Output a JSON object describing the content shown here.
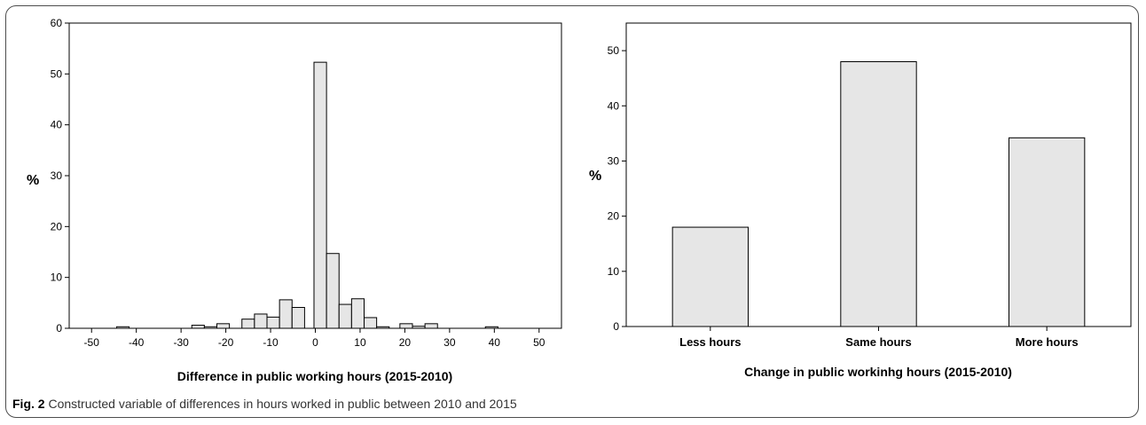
{
  "caption": {
    "label": "Fig. 2",
    "text": "Constructed variable of differences in hours worked in public between 2010 and 2015"
  },
  "chart_data": [
    {
      "type": "bar",
      "subtype": "histogram",
      "title": "",
      "xlabel": "Difference in public working hours (2015-2010)",
      "ylabel": "%",
      "xlim": [
        -55,
        55
      ],
      "ylim": [
        0,
        60
      ],
      "xticks": [
        -50,
        -40,
        -30,
        -20,
        -10,
        0,
        10,
        20,
        30,
        40,
        50
      ],
      "yticks": [
        0,
        10,
        20,
        30,
        40,
        50,
        60
      ],
      "bin_width": 2.8,
      "bars": [
        {
          "x0": -44.4,
          "x1": -41.6,
          "value": 0.3
        },
        {
          "x0": -27.6,
          "x1": -24.8,
          "value": 0.6
        },
        {
          "x0": -24.8,
          "x1": -22.0,
          "value": 0.3
        },
        {
          "x0": -22.0,
          "x1": -19.2,
          "value": 0.9
        },
        {
          "x0": -16.4,
          "x1": -13.6,
          "value": 1.8
        },
        {
          "x0": -13.6,
          "x1": -10.8,
          "value": 2.8
        },
        {
          "x0": -10.8,
          "x1": -8.0,
          "value": 2.2
        },
        {
          "x0": -8.0,
          "x1": -5.2,
          "value": 5.6
        },
        {
          "x0": -5.2,
          "x1": -2.4,
          "value": 4.1
        },
        {
          "x0": -0.3,
          "x1": 2.5,
          "value": 52.3
        },
        {
          "x0": 2.5,
          "x1": 5.3,
          "value": 14.7
        },
        {
          "x0": 5.3,
          "x1": 8.1,
          "value": 4.7
        },
        {
          "x0": 8.1,
          "x1": 10.9,
          "value": 5.8
        },
        {
          "x0": 10.9,
          "x1": 13.7,
          "value": 2.1
        },
        {
          "x0": 13.7,
          "x1": 16.5,
          "value": 0.3
        },
        {
          "x0": 18.9,
          "x1": 21.7,
          "value": 0.9
        },
        {
          "x0": 21.7,
          "x1": 24.5,
          "value": 0.4
        },
        {
          "x0": 24.5,
          "x1": 27.3,
          "value": 0.9
        },
        {
          "x0": 38.0,
          "x1": 40.8,
          "value": 0.3
        }
      ]
    },
    {
      "type": "bar",
      "title": "",
      "xlabel": "Change in public workinhg hours (2015-2010)",
      "ylabel": "%",
      "ylim": [
        0,
        55
      ],
      "yticks": [
        0,
        10,
        20,
        30,
        40,
        50
      ],
      "categories": [
        "Less hours",
        "Same hours",
        "More hours"
      ],
      "values": [
        18,
        48,
        34.2
      ]
    }
  ],
  "colors": {
    "bar_fill": "#e6e6e6",
    "bar_stroke": "#000000"
  }
}
